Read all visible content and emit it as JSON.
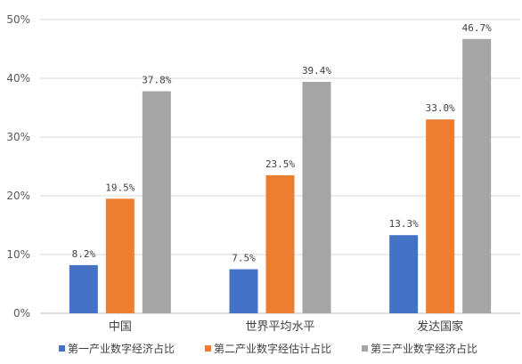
{
  "chart_data": {
    "type": "bar",
    "title": "",
    "xlabel": "",
    "ylabel": "",
    "ylim": [
      0,
      50
    ],
    "y_tick_values": [
      0,
      10,
      20,
      30,
      40,
      50
    ],
    "y_tick_labels": [
      "0%",
      "10%",
      "20%",
      "30%",
      "40%",
      "50%"
    ],
    "grid": "horizontal",
    "legend_position": "bottom",
    "categories": [
      "中国",
      "世界平均水平",
      "发达国家"
    ],
    "series": [
      {
        "name": "第一产业数字经济占比",
        "color": "#4472C4",
        "values": [
          8.2,
          7.5,
          13.3
        ],
        "labels": [
          "8.2%",
          "7.5%",
          "13.3%"
        ]
      },
      {
        "name": "第二产业数字经估计占比",
        "color": "#ED7D31",
        "values": [
          19.5,
          23.5,
          33.0
        ],
        "labels": [
          "19.5%",
          "23.5%",
          "33.0%"
        ]
      },
      {
        "name": "第三产业数字经济占比",
        "color": "#A5A5A5",
        "values": [
          37.8,
          39.4,
          46.7
        ],
        "labels": [
          "37.8%",
          "39.4%",
          "46.7%"
        ]
      }
    ]
  }
}
